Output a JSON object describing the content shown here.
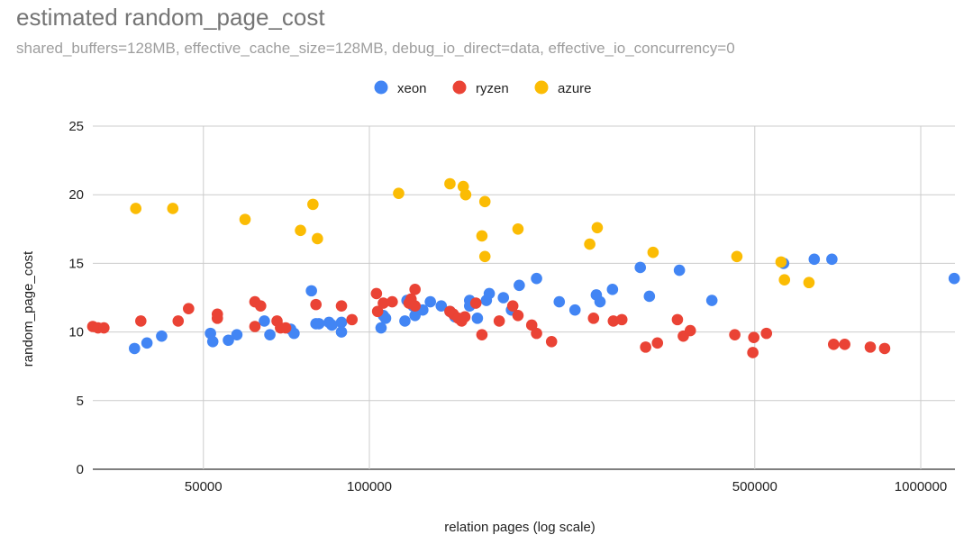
{
  "chart_data": {
    "type": "scatter",
    "title": "estimated random_page_cost",
    "subtitle": "shared_buffers=128MB, effective_cache_size=128MB, debug_io_direct=data, effective_io_concurrency=0",
    "xlabel": "relation pages (log scale)",
    "ylabel": "random_page_cost",
    "xscale": "log",
    "xlim": [
      29000,
      1200000
    ],
    "ylim": [
      0,
      25
    ],
    "x_ticks": [
      50000,
      100000,
      500000,
      1000000
    ],
    "x_tick_labels": [
      "50000",
      "100000",
      "500000",
      "1000000"
    ],
    "y_ticks": [
      0,
      5,
      10,
      15,
      20,
      25
    ],
    "y_tick_labels": [
      "0",
      "5",
      "10",
      "15",
      "20",
      "25"
    ],
    "legend_position": "top",
    "series": [
      {
        "name": "xeon",
        "color": "#4285f4",
        "points": [
          [
            37500,
            8.8
          ],
          [
            39500,
            9.2
          ],
          [
            42000,
            9.7
          ],
          [
            51500,
            9.9
          ],
          [
            52000,
            9.3
          ],
          [
            55500,
            9.4
          ],
          [
            57500,
            9.8
          ],
          [
            64500,
            10.8
          ],
          [
            66000,
            9.8
          ],
          [
            72000,
            10.2
          ],
          [
            73000,
            9.9
          ],
          [
            78500,
            13.0
          ],
          [
            80000,
            10.6
          ],
          [
            81000,
            10.6
          ],
          [
            84500,
            10.7
          ],
          [
            85500,
            10.5
          ],
          [
            89000,
            10.7
          ],
          [
            89000,
            10.0
          ],
          [
            105000,
            10.3
          ],
          [
            106000,
            11.2
          ],
          [
            107000,
            11.0
          ],
          [
            116000,
            10.8
          ],
          [
            117000,
            12.3
          ],
          [
            119000,
            12.3
          ],
          [
            120000,
            11.9
          ],
          [
            121000,
            11.2
          ],
          [
            125000,
            11.6
          ],
          [
            129000,
            12.2
          ],
          [
            135000,
            11.9
          ],
          [
            140000,
            11.5
          ],
          [
            143000,
            11.1
          ],
          [
            152000,
            12.3
          ],
          [
            152000,
            11.9
          ],
          [
            157000,
            11.0
          ],
          [
            163000,
            12.3
          ],
          [
            165000,
            12.8
          ],
          [
            175000,
            12.5
          ],
          [
            181000,
            11.6
          ],
          [
            187000,
            13.4
          ],
          [
            201000,
            13.9
          ],
          [
            221000,
            12.2
          ],
          [
            236000,
            11.6
          ],
          [
            258000,
            12.7
          ],
          [
            262000,
            12.2
          ],
          [
            276000,
            13.1
          ],
          [
            310000,
            14.7
          ],
          [
            322000,
            12.6
          ],
          [
            365000,
            14.5
          ],
          [
            418000,
            12.3
          ],
          [
            564000,
            15.0
          ],
          [
            641000,
            15.3
          ],
          [
            690000,
            15.3
          ],
          [
            1150000,
            13.9
          ]
        ]
      },
      {
        "name": "ryzen",
        "color": "#ea4335",
        "points": [
          [
            31500,
            10.4
          ],
          [
            32200,
            10.3
          ],
          [
            33000,
            10.3
          ],
          [
            38500,
            10.8
          ],
          [
            45000,
            10.8
          ],
          [
            47000,
            11.7
          ],
          [
            53000,
            11.3
          ],
          [
            53000,
            11.0
          ],
          [
            62000,
            12.2
          ],
          [
            62000,
            10.4
          ],
          [
            63500,
            11.9
          ],
          [
            68000,
            10.8
          ],
          [
            69000,
            10.3
          ],
          [
            70500,
            10.3
          ],
          [
            80000,
            12.0
          ],
          [
            89000,
            11.9
          ],
          [
            93000,
            10.9
          ],
          [
            103000,
            12.8
          ],
          [
            103500,
            11.5
          ],
          [
            106000,
            12.1
          ],
          [
            110000,
            12.2
          ],
          [
            119000,
            12.4
          ],
          [
            121000,
            13.1
          ],
          [
            118000,
            12.1
          ],
          [
            121000,
            11.9
          ],
          [
            140000,
            11.5
          ],
          [
            142000,
            11.3
          ],
          [
            145000,
            11.0
          ],
          [
            147000,
            10.8
          ],
          [
            149000,
            11.1
          ],
          [
            156000,
            12.1
          ],
          [
            160000,
            9.8
          ],
          [
            172000,
            10.8
          ],
          [
            182000,
            11.9
          ],
          [
            186000,
            11.2
          ],
          [
            197000,
            10.5
          ],
          [
            201000,
            9.9
          ],
          [
            214000,
            9.3
          ],
          [
            255000,
            11.0
          ],
          [
            277000,
            10.8
          ],
          [
            287000,
            10.9
          ],
          [
            317000,
            8.9
          ],
          [
            333000,
            9.2
          ],
          [
            362000,
            10.9
          ],
          [
            371000,
            9.7
          ],
          [
            382000,
            10.1
          ],
          [
            460000,
            9.8
          ],
          [
            498000,
            9.6
          ],
          [
            496000,
            8.5
          ],
          [
            525000,
            9.9
          ],
          [
            695000,
            9.1
          ],
          [
            728000,
            9.1
          ],
          [
            810000,
            8.9
          ],
          [
            860000,
            8.8
          ]
        ]
      },
      {
        "name": "azure",
        "color": "#fbbc04",
        "points": [
          [
            37700,
            19.0
          ],
          [
            44000,
            19.0
          ],
          [
            59500,
            18.2
          ],
          [
            75000,
            17.4
          ],
          [
            79000,
            19.3
          ],
          [
            80500,
            16.8
          ],
          [
            113000,
            20.1
          ],
          [
            140000,
            20.8
          ],
          [
            148000,
            20.6
          ],
          [
            149500,
            20.0
          ],
          [
            160000,
            17.0
          ],
          [
            162000,
            19.5
          ],
          [
            162000,
            15.5
          ],
          [
            186000,
            17.5
          ],
          [
            251000,
            16.4
          ],
          [
            259000,
            17.6
          ],
          [
            327000,
            15.8
          ],
          [
            464000,
            15.5
          ],
          [
            558000,
            15.1
          ],
          [
            566000,
            13.8
          ],
          [
            627000,
            13.6
          ]
        ]
      }
    ]
  }
}
